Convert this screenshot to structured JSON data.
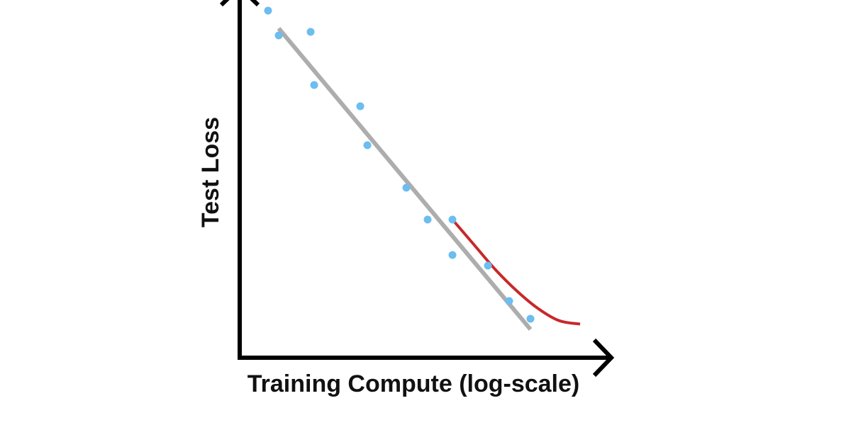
{
  "chart_data": {
    "type": "scatter",
    "title": "",
    "xlabel": "Training Compute (log-scale)",
    "ylabel": "Test Loss",
    "xscale": "log",
    "xlim": [
      0,
      10
    ],
    "ylim": [
      0,
      10
    ],
    "grid": false,
    "legend": "none",
    "series": [
      {
        "kind": "scatter",
        "color": "#6CBDF0",
        "x": [
          0.8,
          1.1,
          2.0,
          2.1,
          3.4,
          3.6,
          4.7,
          5.3,
          6.0,
          6.0,
          7.0,
          7.6,
          8.2
        ],
        "y": [
          9.8,
          9.1,
          9.2,
          7.7,
          7.1,
          6.0,
          4.8,
          3.9,
          3.9,
          2.9,
          2.6,
          1.6,
          1.1
        ]
      },
      {
        "kind": "line",
        "color": "#ADADAD",
        "x": [
          1.1,
          8.2
        ],
        "y": [
          9.3,
          0.8
        ]
      },
      {
        "kind": "line",
        "color": "#C8282A",
        "x": [
          6.0,
          6.6,
          7.2,
          7.8,
          8.4,
          9.0,
          9.6
        ],
        "y": [
          3.9,
          3.2,
          2.5,
          1.9,
          1.4,
          1.05,
          0.95
        ]
      }
    ]
  }
}
